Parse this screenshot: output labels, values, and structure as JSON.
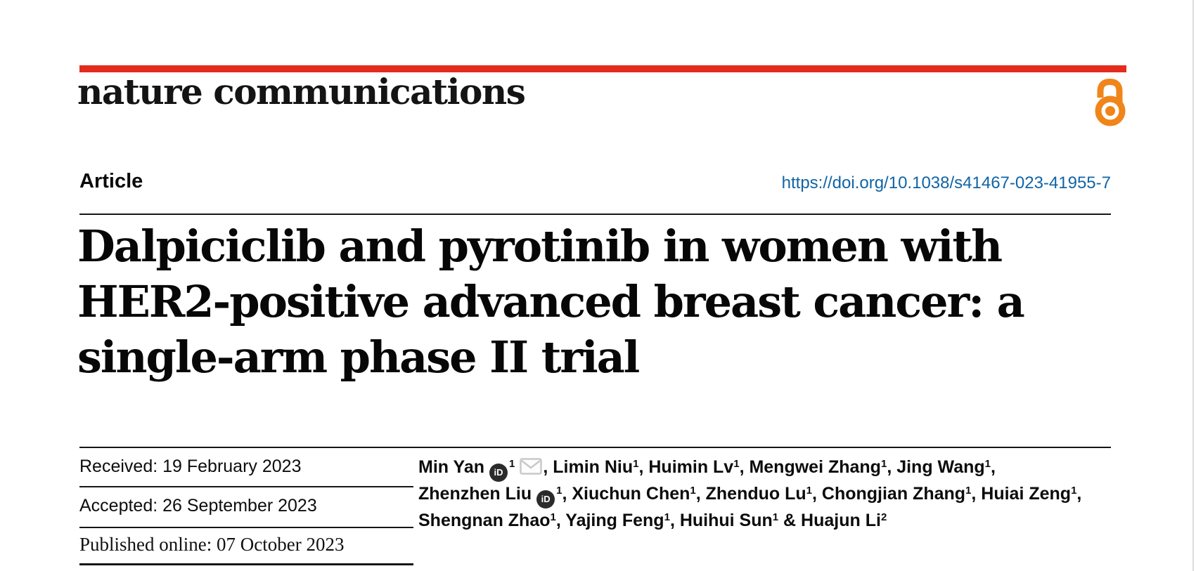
{
  "journal": {
    "logo_text": "nature communications",
    "open_access_icon": "open-lock-icon"
  },
  "colors": {
    "brand_red": "#e32b1e",
    "open_access_orange": "#f08519",
    "link_blue": "#1164a5"
  },
  "article": {
    "label": "Article",
    "doi": "https://doi.org/10.1038/s41467-023-41955-7",
    "title_lines": [
      "Dalpiciclib and pyrotinib in women with",
      "HER2-positive advanced breast cancer: a",
      "single-arm phase II trial"
    ]
  },
  "history": {
    "received": "Received: 19 February 2023",
    "accepted": "Accepted: 26 September 2023",
    "published": "Published online: 07 October 2023"
  },
  "icons": {
    "orcid_text": "iD",
    "orcid_name": "orcid-icon",
    "email_name": "email-icon"
  },
  "authors": {
    "lines": [
      {
        "segments": [
          {
            "text": "Min Yan"
          },
          {
            "icon": "orcid"
          },
          {
            "sup": "1"
          },
          {
            "icon": "email"
          },
          {
            "text": ", Limin Niu"
          },
          {
            "sup": "1"
          },
          {
            "text": ", Huimin Lv"
          },
          {
            "sup": "1"
          },
          {
            "text": ", Mengwei Zhang"
          },
          {
            "sup": "1"
          },
          {
            "text": ", Jing Wang"
          },
          {
            "sup": "1"
          },
          {
            "text": ","
          }
        ]
      },
      {
        "segments": [
          {
            "text": "Zhenzhen Liu"
          },
          {
            "icon": "orcid"
          },
          {
            "sup": "1"
          },
          {
            "text": ", Xiuchun Chen"
          },
          {
            "sup": "1"
          },
          {
            "text": ", Zhenduo Lu"
          },
          {
            "sup": "1"
          },
          {
            "text": ", Chongjian Zhang"
          },
          {
            "sup": "1"
          },
          {
            "text": ", Huiai Zeng"
          },
          {
            "sup": "1"
          },
          {
            "text": ","
          }
        ]
      },
      {
        "segments": [
          {
            "text": "Shengnan Zhao"
          },
          {
            "sup": "1"
          },
          {
            "text": ", Yajing Feng"
          },
          {
            "sup": "1"
          },
          {
            "text": ", Huihui Sun"
          },
          {
            "sup": "1"
          },
          {
            "text": " & Huajun Li"
          },
          {
            "sup": "2"
          }
        ]
      }
    ]
  }
}
